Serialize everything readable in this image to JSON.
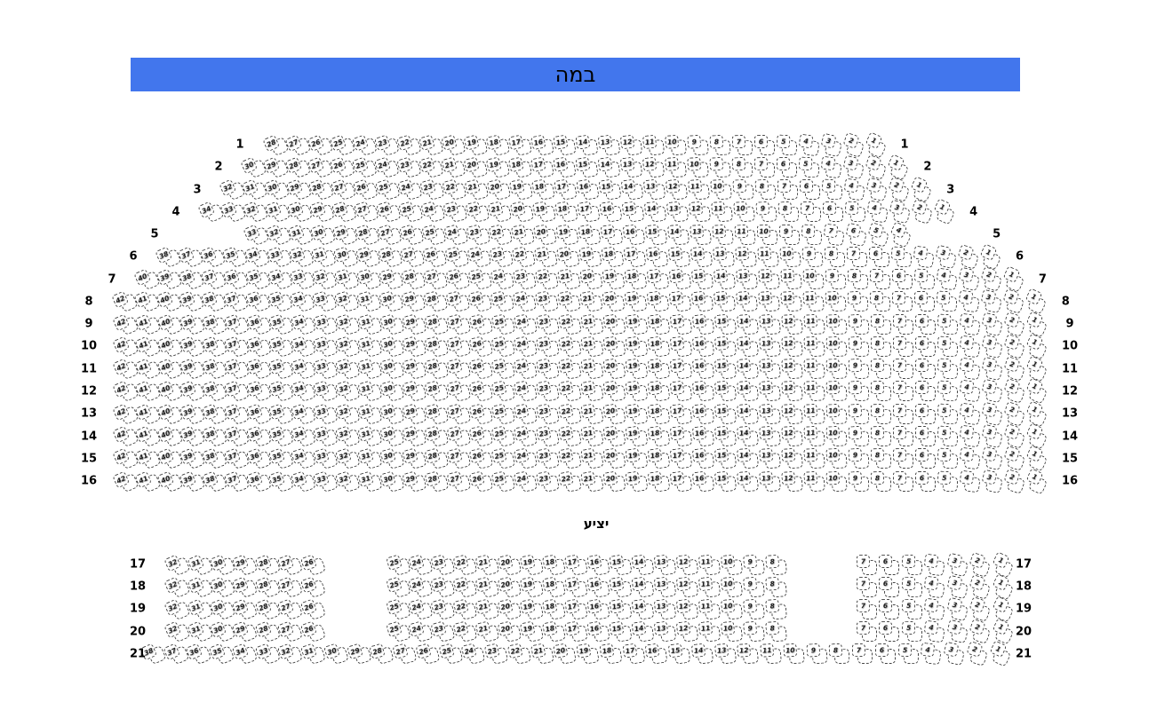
{
  "stage": {
    "label": "במה"
  },
  "balcony": {
    "label": "יציע"
  },
  "colors": {
    "stage_fill": "#4276ed",
    "seat_border": "#444444",
    "seat_fill": "#ffffff",
    "text": "#000000"
  },
  "sections": [
    {
      "name": "main",
      "rows": [
        {
          "label": "1",
          "blocks": [
            {
              "start": 28,
              "end": 1
            }
          ]
        },
        {
          "label": "2",
          "blocks": [
            {
              "start": 30,
              "end": 1
            }
          ]
        },
        {
          "label": "3",
          "blocks": [
            {
              "start": 32,
              "end": 1
            }
          ]
        },
        {
          "label": "4",
          "blocks": [
            {
              "start": 34,
              "end": 1
            }
          ]
        },
        {
          "label": "5",
          "blocks": [
            {
              "start": 33,
              "end": 4
            }
          ]
        },
        {
          "label": "6",
          "blocks": [
            {
              "start": 38,
              "end": 1
            }
          ]
        },
        {
          "label": "7",
          "blocks": [
            {
              "start": 40,
              "end": 1
            }
          ]
        },
        {
          "label": "8",
          "blocks": [
            {
              "start": 42,
              "end": 1
            }
          ]
        },
        {
          "label": "9",
          "blocks": [
            {
              "start": 42,
              "end": 1
            }
          ]
        },
        {
          "label": "10",
          "blocks": [
            {
              "start": 42,
              "end": 1
            }
          ]
        },
        {
          "label": "11",
          "blocks": [
            {
              "start": 42,
              "end": 1
            }
          ]
        },
        {
          "label": "12",
          "blocks": [
            {
              "start": 42,
              "end": 1
            }
          ]
        },
        {
          "label": "13",
          "blocks": [
            {
              "start": 42,
              "end": 1
            }
          ]
        },
        {
          "label": "14",
          "blocks": [
            {
              "start": 42,
              "end": 1
            }
          ]
        },
        {
          "label": "15",
          "blocks": [
            {
              "start": 42,
              "end": 1
            }
          ]
        },
        {
          "label": "16",
          "blocks": [
            {
              "start": 42,
              "end": 1
            }
          ]
        }
      ]
    },
    {
      "name": "balcony",
      "rows": [
        {
          "label": "17",
          "blocks": [
            {
              "start": 32,
              "end": 26
            },
            {
              "start": 25,
              "end": 8
            },
            {
              "start": 7,
              "end": 1
            }
          ]
        },
        {
          "label": "18",
          "blocks": [
            {
              "start": 32,
              "end": 26
            },
            {
              "start": 25,
              "end": 8
            },
            {
              "start": 7,
              "end": 1
            }
          ]
        },
        {
          "label": "19",
          "blocks": [
            {
              "start": 32,
              "end": 26
            },
            {
              "start": 25,
              "end": 8
            },
            {
              "start": 7,
              "end": 1
            }
          ]
        },
        {
          "label": "20",
          "blocks": [
            {
              "start": 32,
              "end": 26
            },
            {
              "start": 25,
              "end": 8
            },
            {
              "start": 7,
              "end": 1
            }
          ]
        },
        {
          "label": "21",
          "blocks": [
            {
              "start": 38,
              "end": 1
            }
          ]
        }
      ]
    }
  ]
}
